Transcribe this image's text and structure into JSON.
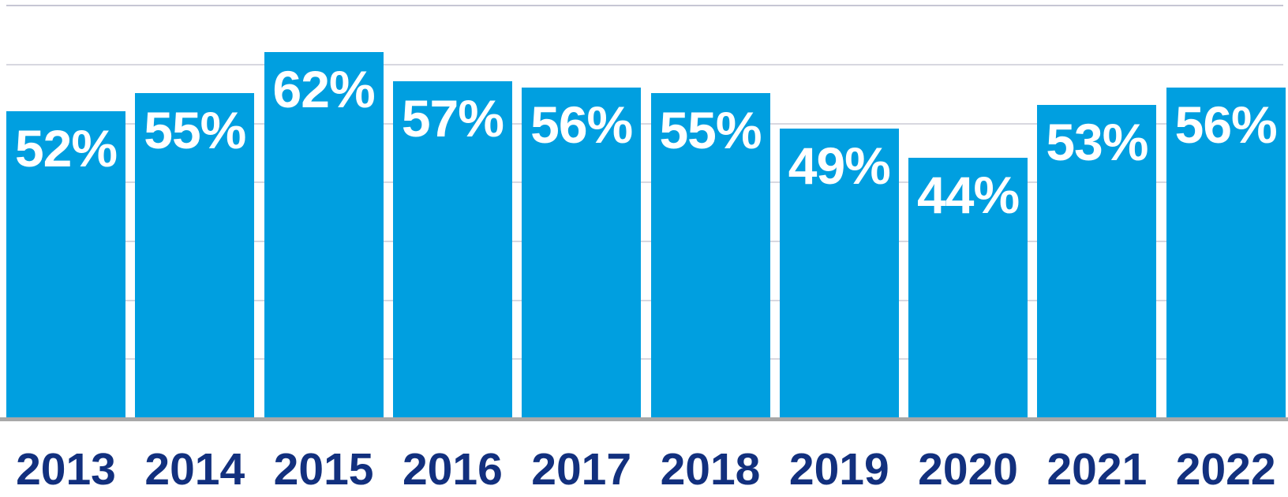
{
  "chart_data": {
    "type": "bar",
    "categories": [
      "2013",
      "2014",
      "2015",
      "2016",
      "2017",
      "2018",
      "2019",
      "2020",
      "2021",
      "2022"
    ],
    "values": [
      52,
      55,
      62,
      57,
      56,
      55,
      49,
      44,
      53,
      56
    ],
    "labels": [
      "52%",
      "55%",
      "62%",
      "57%",
      "56%",
      "55%",
      "49%",
      "44%",
      "53%",
      "56%"
    ],
    "title": "",
    "xlabel": "",
    "ylabel": "",
    "ylim": [
      0,
      70
    ],
    "gridline_step": 10,
    "grid": true,
    "legend_position": "none",
    "colors": {
      "bar": "#009FE0",
      "bar_label": "#FFFFFF",
      "category_label": "#12307E",
      "gridline": "#D8D8E0",
      "gridline_top": "#C6C6D4",
      "axis_line": "#A8A8A8",
      "background": "#FFFFFF"
    }
  }
}
